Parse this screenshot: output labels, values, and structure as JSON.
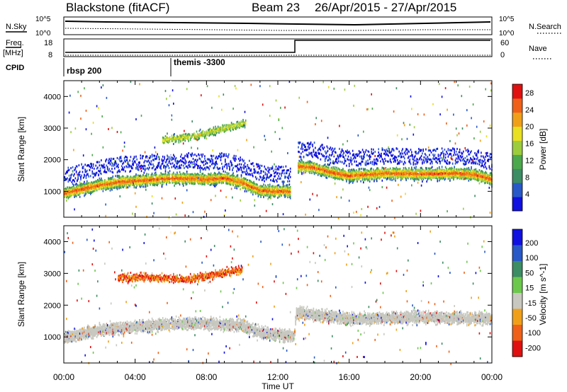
{
  "header": {
    "station": "Blackstone (fitACF)",
    "beam": "Beam 23",
    "dates": "26/Apr/2015 - 27/Apr/2015"
  },
  "top_panels": {
    "nsky_label": "N.Sky",
    "nsearch_label": "N.Search",
    "count_ticks_left": [
      "10^5",
      "10^0"
    ],
    "count_ticks_right": [
      "10^5",
      "10^0"
    ],
    "freq_label_line1": "Freq.",
    "freq_label_line2": "[MHz]",
    "freq_ticks": [
      "18",
      "8"
    ],
    "nave_label": "Nave",
    "nave_ticks": [
      "60",
      "0"
    ],
    "cpid_label": "CPID",
    "cpid_entries": [
      {
        "name": "rbsp 200",
        "start_hour": 0
      },
      {
        "name": "themis -3300",
        "start_hour": 6
      }
    ]
  },
  "chart_data": [
    {
      "type": "heatmap",
      "title": "",
      "xlabel": "Time UT",
      "ylabel": "Slant Range [km]",
      "xlim": [
        0,
        24
      ],
      "ylim": [
        180,
        4500
      ],
      "x_ticks": [
        "00:00",
        "04:00",
        "08:00",
        "12:00",
        "16:00",
        "20:00",
        "00:00"
      ],
      "y_ticks": [
        1000,
        2000,
        3000,
        4000
      ],
      "colorbar": {
        "label": "Power [dB]",
        "range": [
          0,
          30
        ],
        "ticks": [
          4,
          8,
          12,
          16,
          20,
          24,
          28
        ],
        "colors": [
          "#1010e0",
          "#2858c8",
          "#3c8c64",
          "#4ca84c",
          "#9ccc3c",
          "#e8e020",
          "#f0a018",
          "#f06018",
          "#e01010"
        ]
      },
      "features": {
        "main_band_km": [
          [
            0,
            960
          ],
          [
            1,
            1100
          ],
          [
            2,
            1220
          ],
          [
            3,
            1320
          ],
          [
            4,
            1360
          ],
          [
            5,
            1400
          ],
          [
            6,
            1440
          ],
          [
            7,
            1440
          ],
          [
            8,
            1400
          ],
          [
            9,
            1450
          ],
          [
            10,
            1300
          ],
          [
            11,
            1050
          ],
          [
            12,
            1030
          ],
          [
            12.9,
            1030
          ],
          [
            13,
            1820
          ],
          [
            14,
            1780
          ],
          [
            15,
            1620
          ],
          [
            16,
            1520
          ],
          [
            18,
            1600
          ],
          [
            20,
            1580
          ],
          [
            22,
            1600
          ],
          [
            23,
            1560
          ],
          [
            24,
            1400
          ]
        ],
        "upper_band_km": [
          [
            5.5,
            2650
          ],
          [
            6.5,
            2720
          ],
          [
            7.5,
            2800
          ],
          [
            8.5,
            2950
          ],
          [
            9.5,
            3100
          ],
          [
            10.2,
            3200
          ]
        ],
        "data_gap_hours": [
          12.7,
          13.1
        ]
      }
    },
    {
      "type": "heatmap",
      "title": "",
      "xlabel": "Time UT",
      "ylabel": "Slant Range [km]",
      "xlim": [
        0,
        24
      ],
      "ylim": [
        180,
        4500
      ],
      "x_ticks": [
        "00:00",
        "04:00",
        "08:00",
        "12:00",
        "16:00",
        "20:00",
        "00:00"
      ],
      "y_ticks": [
        1000,
        2000,
        3000,
        4000
      ],
      "colorbar": {
        "label": "Velocity [m s^-1]",
        "range": [
          -250,
          250
        ],
        "ticks": [
          200,
          100,
          50,
          15,
          -15,
          -50,
          -100,
          -200
        ],
        "colors": [
          "#e01010",
          "#f06018",
          "#f0a018",
          "#c8c8c0",
          "#6cc84c",
          "#3c8c64",
          "#2858c8",
          "#1010e0"
        ]
      },
      "features": {
        "ground_scatter_band_km": [
          [
            0,
            1000
          ],
          [
            2,
            1250
          ],
          [
            4,
            1350
          ],
          [
            6,
            1450
          ],
          [
            8,
            1450
          ],
          [
            10,
            1400
          ],
          [
            11,
            1150
          ],
          [
            12.9,
            1050
          ],
          [
            13,
            1800
          ],
          [
            16,
            1600
          ],
          [
            20,
            1650
          ],
          [
            24,
            1600
          ]
        ],
        "upper_band_km": [
          [
            3,
            2900
          ],
          [
            5,
            2900
          ],
          [
            7,
            2850
          ],
          [
            8.5,
            3000
          ],
          [
            10,
            3150
          ]
        ]
      }
    }
  ]
}
